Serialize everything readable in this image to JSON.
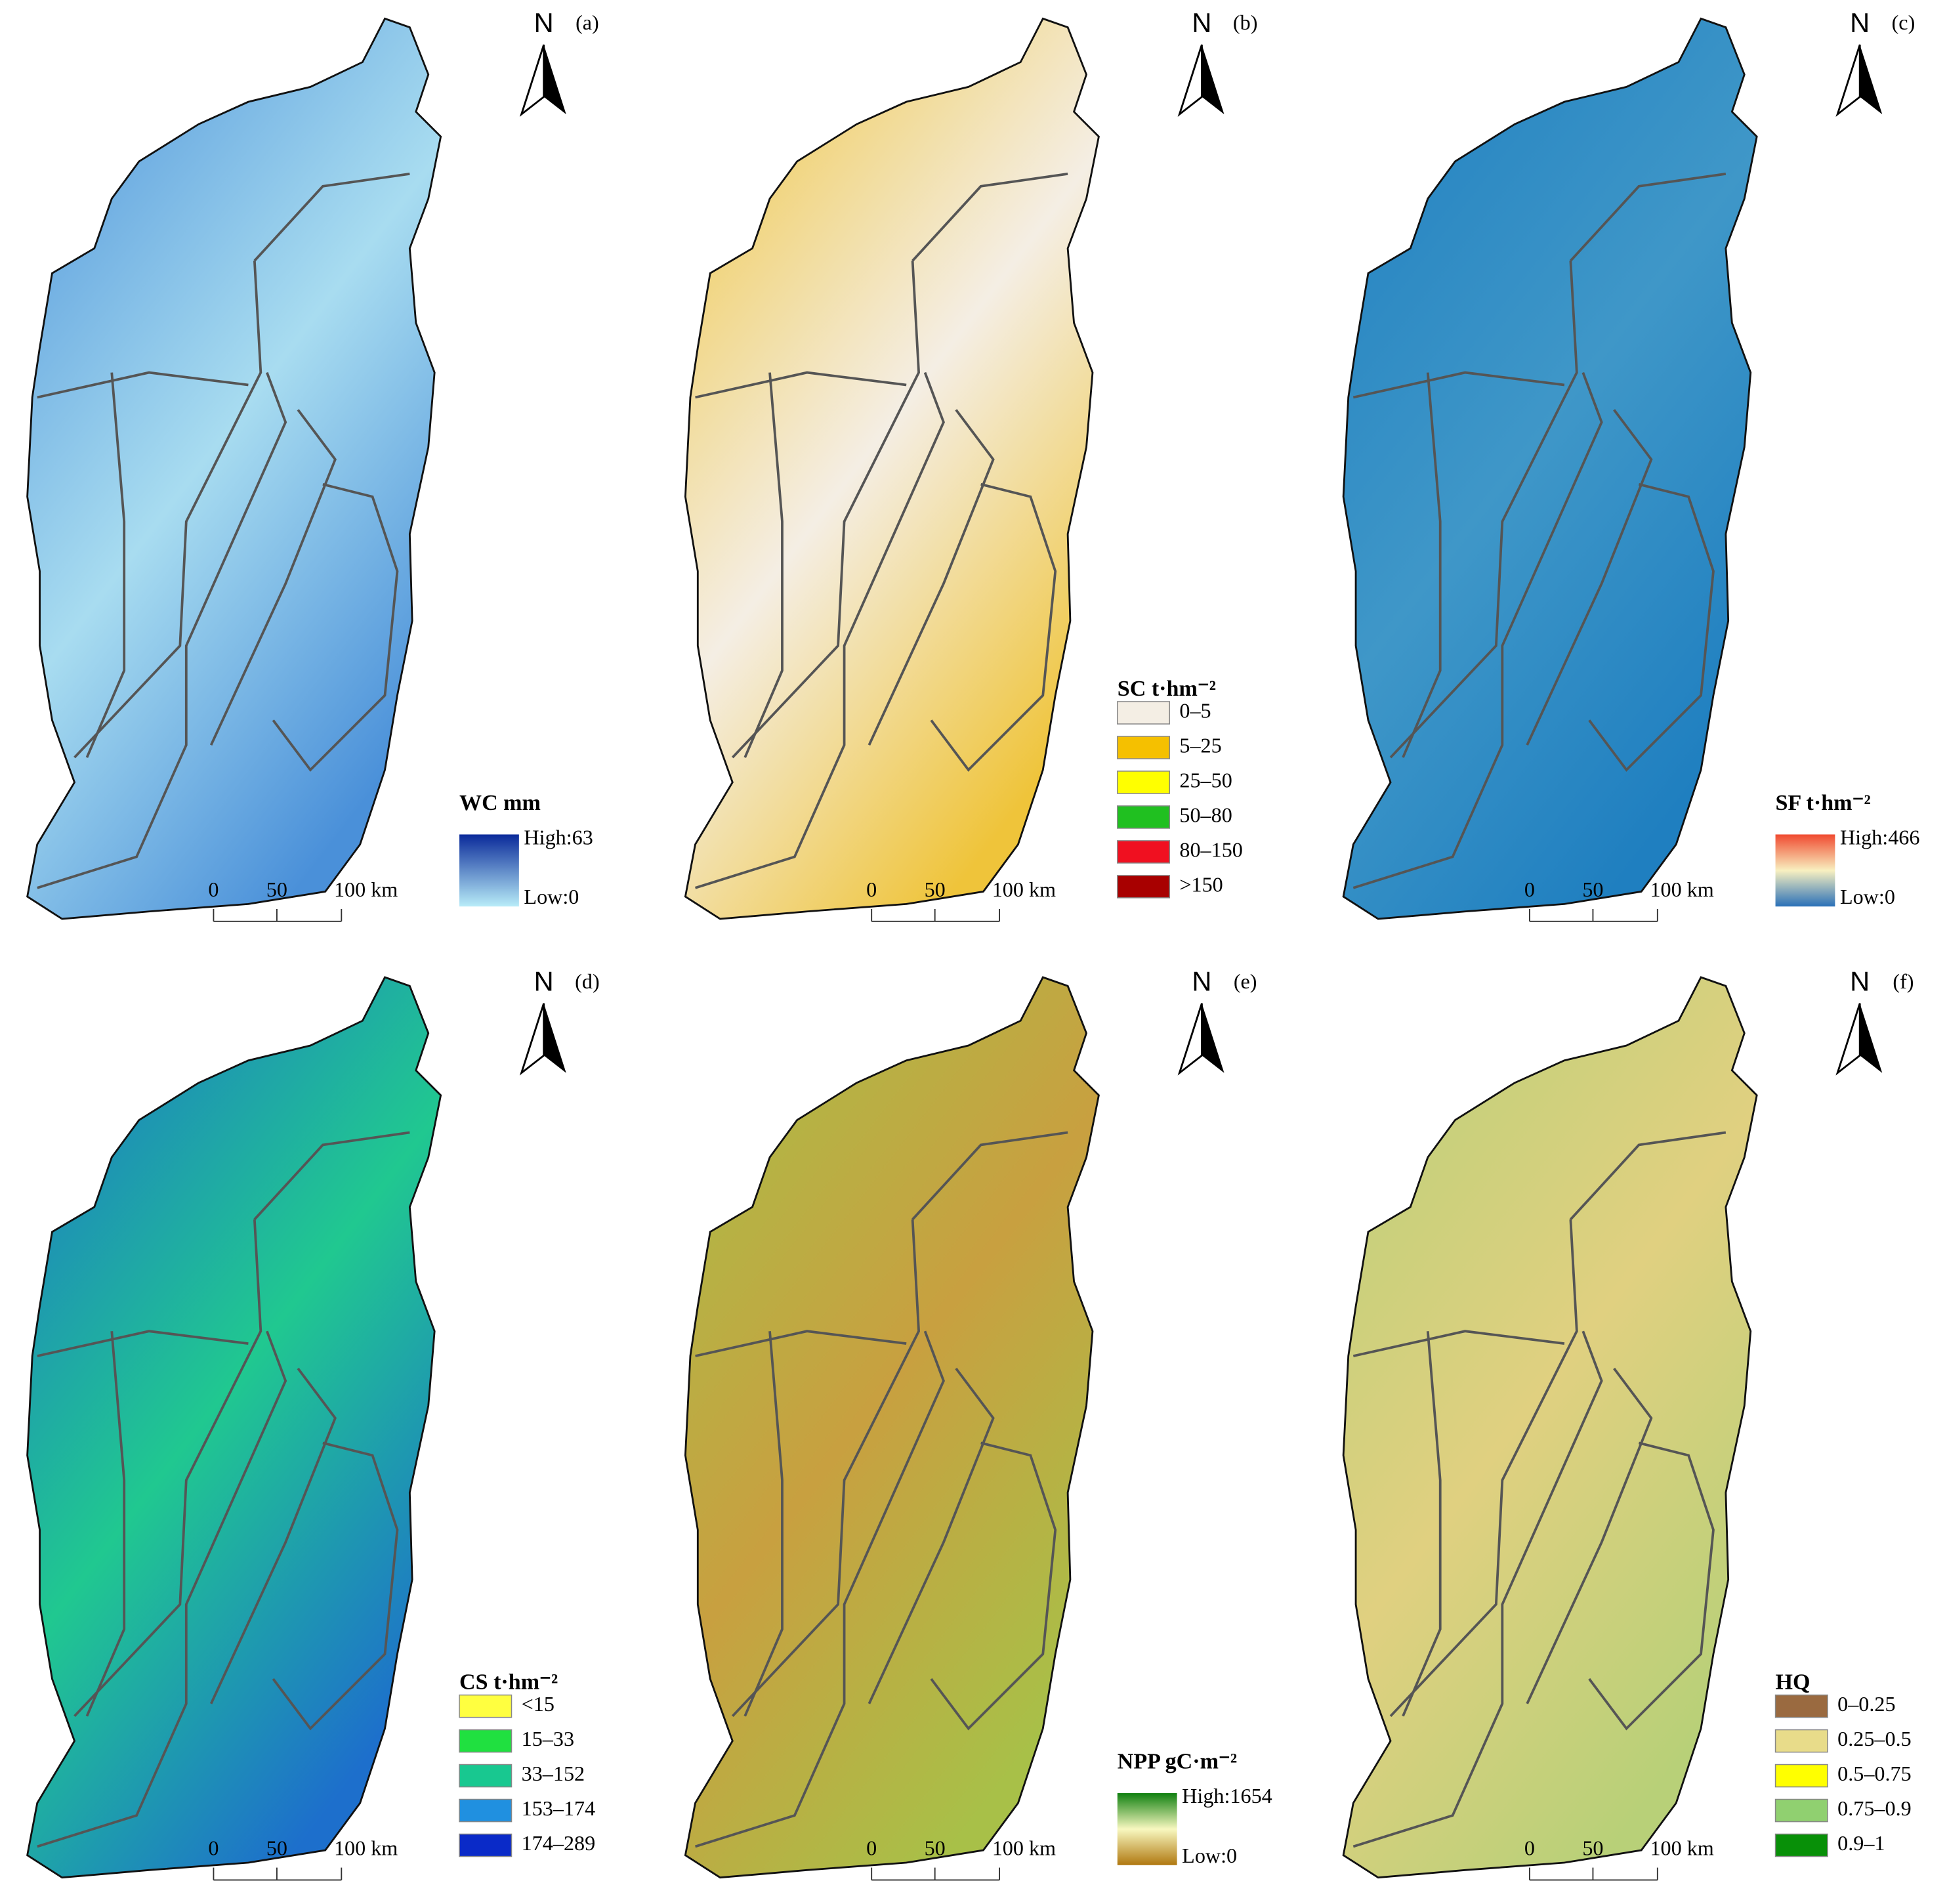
{
  "panels": [
    {
      "letter": "(a)",
      "north": "N",
      "fill": "#4a90d9",
      "fill2": "#a8dcf0",
      "legend": {
        "kind": "gradient",
        "title": "WC mm",
        "high": "High:63",
        "low": "Low:0",
        "colors": [
          "#0a2a9a",
          "#b8ecf8"
        ]
      },
      "scale": [
        "0",
        "50",
        "100 km"
      ]
    },
    {
      "letter": "(b)",
      "north": "N",
      "fill": "#efc43a",
      "fill2": "#f4eee4",
      "legend": {
        "kind": "classes",
        "title": "SC t·hm⁻²",
        "entries": [
          {
            "label": "0–5",
            "color": "#f4eee4"
          },
          {
            "label": "5–25",
            "color": "#f5c000"
          },
          {
            "label": "25–50",
            "color": "#ffff00"
          },
          {
            "label": "50–80",
            "color": "#20c020"
          },
          {
            "label": "80–150",
            "color": "#f01020"
          },
          {
            "label": ">150",
            "color": "#a80000"
          }
        ]
      },
      "scale": [
        "0",
        "50",
        "100 km"
      ]
    },
    {
      "letter": "(c)",
      "north": "N",
      "fill": "#1f7fc0",
      "fill2": "#3f97c8",
      "legend": {
        "kind": "gradient",
        "title": "SF t·hm⁻²",
        "high": "High:466",
        "low": "Low:0",
        "colors": [
          "#f04a30",
          "#f8f0c0",
          "#2a70b8"
        ]
      },
      "scale": [
        "0",
        "50",
        "100 km"
      ]
    },
    {
      "letter": "(d)",
      "north": "N",
      "fill": "#1d6fcc",
      "fill2": "#20c890",
      "legend": {
        "kind": "classes",
        "title": "CS t·hm⁻²",
        "entries": [
          {
            "label": "<15",
            "color": "#ffff40"
          },
          {
            "label": "15–33",
            "color": "#20e040"
          },
          {
            "label": "33–152",
            "color": "#18c890"
          },
          {
            "label": "153–174",
            "color": "#2090e0"
          },
          {
            "label": "174–289",
            "color": "#0a2ac8"
          }
        ]
      },
      "scale": [
        "0",
        "50",
        "100 km"
      ]
    },
    {
      "letter": "(e)",
      "north": "N",
      "fill": "#a8c048",
      "fill2": "#c8a040",
      "legend": {
        "kind": "gradient",
        "title": "NPP gC·m⁻²",
        "high": "High:1654",
        "low": "Low:0",
        "colors": [
          "#108010",
          "#f8f8c0",
          "#b07810"
        ]
      },
      "scale": [
        "0",
        "50",
        "100 km"
      ]
    },
    {
      "letter": "(f)",
      "north": "N",
      "fill": "#b8d078",
      "fill2": "#e0d080",
      "legend": {
        "kind": "classes",
        "title": "HQ",
        "entries": [
          {
            "label": "0–0.25",
            "color": "#9a6a40"
          },
          {
            "label": "0.25–0.5",
            "color": "#e8dc8a"
          },
          {
            "label": "0.5–0.75",
            "color": "#ffff00"
          },
          {
            "label": "0.75–0.9",
            "color": "#90d070"
          },
          {
            "label": "0.9–1",
            "color": "#089008"
          }
        ]
      },
      "scale": [
        "0",
        "50",
        "100 km"
      ]
    }
  ]
}
